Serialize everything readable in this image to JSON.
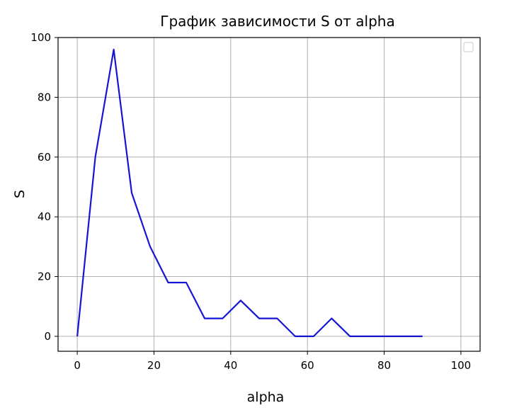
{
  "chart_data": {
    "type": "line",
    "title": "График зависимости S от alpha",
    "xlabel": "alpha",
    "ylabel": "S",
    "xlim": [
      -5,
      105
    ],
    "ylim": [
      -5,
      100
    ],
    "xticks": [
      0,
      20,
      40,
      60,
      80,
      100
    ],
    "yticks": [
      0,
      20,
      40,
      60,
      80,
      100
    ],
    "grid": true,
    "legend": "top-right",
    "series": [
      {
        "color": "#1515d6",
        "x": [
          0,
          4.7,
          9.5,
          14.2,
          19,
          23.7,
          28.4,
          33.2,
          37.9,
          42.6,
          47.4,
          52.1,
          56.8,
          61.6,
          66.3,
          71.1,
          75.8,
          80.5,
          85.3,
          90
        ],
        "y": [
          0,
          60,
          96,
          48,
          30,
          18,
          18,
          6,
          6,
          12,
          6,
          6,
          0,
          0,
          6,
          0,
          0,
          0,
          0,
          0
        ]
      }
    ]
  }
}
